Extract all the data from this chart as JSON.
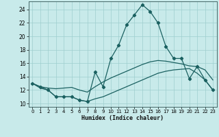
{
  "xlabel": "Humidex (Indice chaleur)",
  "background_color": "#c8eaea",
  "grid_color": "#9ecece",
  "line_color": "#1a6060",
  "xlim": [
    -0.5,
    23.5
  ],
  "ylim": [
    9.5,
    25.2
  ],
  "xticks": [
    0,
    1,
    2,
    3,
    4,
    5,
    6,
    7,
    8,
    9,
    10,
    11,
    12,
    13,
    14,
    15,
    16,
    17,
    18,
    19,
    20,
    21,
    22,
    23
  ],
  "yticks": [
    10,
    12,
    14,
    16,
    18,
    20,
    22,
    24
  ],
  "series1_x": [
    0,
    1,
    2,
    3,
    4,
    5,
    6,
    7,
    8,
    9,
    10,
    11,
    12,
    13,
    14,
    15,
    16,
    17,
    18,
    19,
    20,
    21,
    22,
    23
  ],
  "series1_y": [
    13.0,
    12.5,
    12.0,
    11.0,
    11.0,
    11.0,
    10.5,
    10.3,
    14.7,
    12.5,
    16.7,
    18.7,
    21.7,
    23.2,
    24.7,
    23.7,
    22.0,
    18.5,
    16.7,
    16.7,
    13.7,
    15.5,
    13.5,
    12.0
  ],
  "series2_x": [
    0,
    1,
    2,
    3,
    4,
    5,
    6,
    7,
    8,
    9,
    10,
    11,
    12,
    13,
    14,
    15,
    16,
    17,
    18,
    19,
    20,
    21,
    22,
    23
  ],
  "series2_y": [
    13.0,
    12.5,
    12.3,
    12.2,
    12.3,
    12.4,
    12.0,
    11.7,
    12.5,
    13.2,
    13.8,
    14.3,
    14.8,
    15.3,
    15.8,
    16.2,
    16.4,
    16.3,
    16.1,
    15.9,
    15.6,
    15.5,
    15.0,
    13.5
  ],
  "series3_x": [
    0,
    1,
    2,
    3,
    4,
    5,
    6,
    7,
    8,
    9,
    10,
    11,
    12,
    13,
    14,
    15,
    16,
    17,
    18,
    19,
    20,
    21,
    22,
    23
  ],
  "series3_y": [
    13.0,
    12.3,
    12.0,
    11.0,
    11.0,
    11.0,
    10.5,
    10.3,
    10.7,
    11.0,
    11.5,
    12.0,
    12.5,
    13.0,
    13.5,
    14.0,
    14.5,
    14.8,
    15.0,
    15.1,
    15.2,
    14.5,
    13.5,
    12.0
  ]
}
